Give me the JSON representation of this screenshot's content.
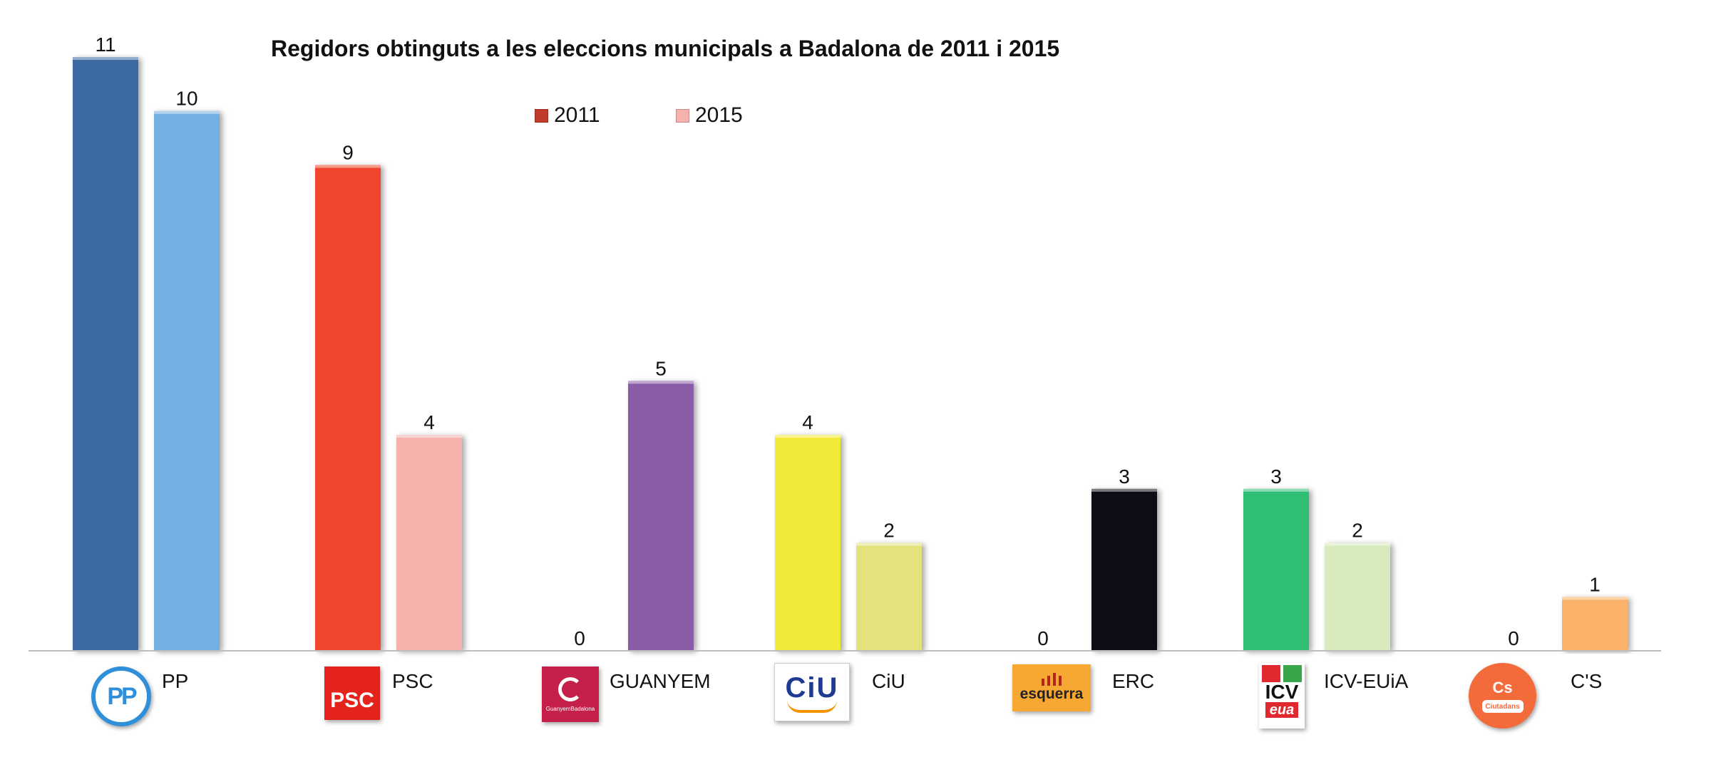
{
  "chart_data": {
    "type": "bar",
    "title": "Regidors obtinguts a les eleccions municipals a Badalona de 2011 i 2015",
    "categories": [
      "PP",
      "PSC",
      "GUANYEM",
      "CiU",
      "ERC",
      "ICV-EUiA",
      "C'S"
    ],
    "series": [
      {
        "name": "2011",
        "values": [
          11,
          9,
          0,
          4,
          0,
          3,
          0
        ],
        "legend_color": "#c0392b"
      },
      {
        "name": "2015",
        "values": [
          10,
          4,
          5,
          2,
          3,
          2,
          1
        ],
        "legend_color": "#f6b1ad"
      }
    ],
    "bar_colors": {
      "2011": [
        "#3d6aa3",
        "#f2452d",
        null,
        "#f2ea38",
        null,
        "#2fbf75",
        null
      ],
      "2015": [
        "#74aee2",
        "#f6b1ad",
        "#8a5ca8",
        "#e4e27b",
        "#0b0b12",
        "#d8ebbd",
        "#fbb26a"
      ]
    },
    "ylim": [
      0,
      11
    ],
    "grid": false,
    "legend_position": "top-center",
    "data_labels": true
  },
  "logos": {
    "pp": {
      "text": "PP",
      "color": "#2f8fd8",
      "icon": "pp-logo"
    },
    "psc": {
      "text": "PSC",
      "color": "#e4231d",
      "icon": "psc-logo"
    },
    "guanyem": {
      "text": "Guanyem Badalona",
      "color": "#c4204a",
      "icon": "guanyem-logo"
    },
    "ciu": {
      "text": "CiU",
      "color": "#1f3a93",
      "icon": "ciu-logo"
    },
    "erc": {
      "text": "esquerra",
      "color": "#f7a833",
      "icon": "erc-logo"
    },
    "icv": {
      "text": "ICV euia",
      "color": "#e0282e",
      "icon": "icv-euia-logo"
    },
    "cs": {
      "text": "Cs Ciutadans",
      "color": "#f36b3a",
      "icon": "cs-logo"
    }
  }
}
